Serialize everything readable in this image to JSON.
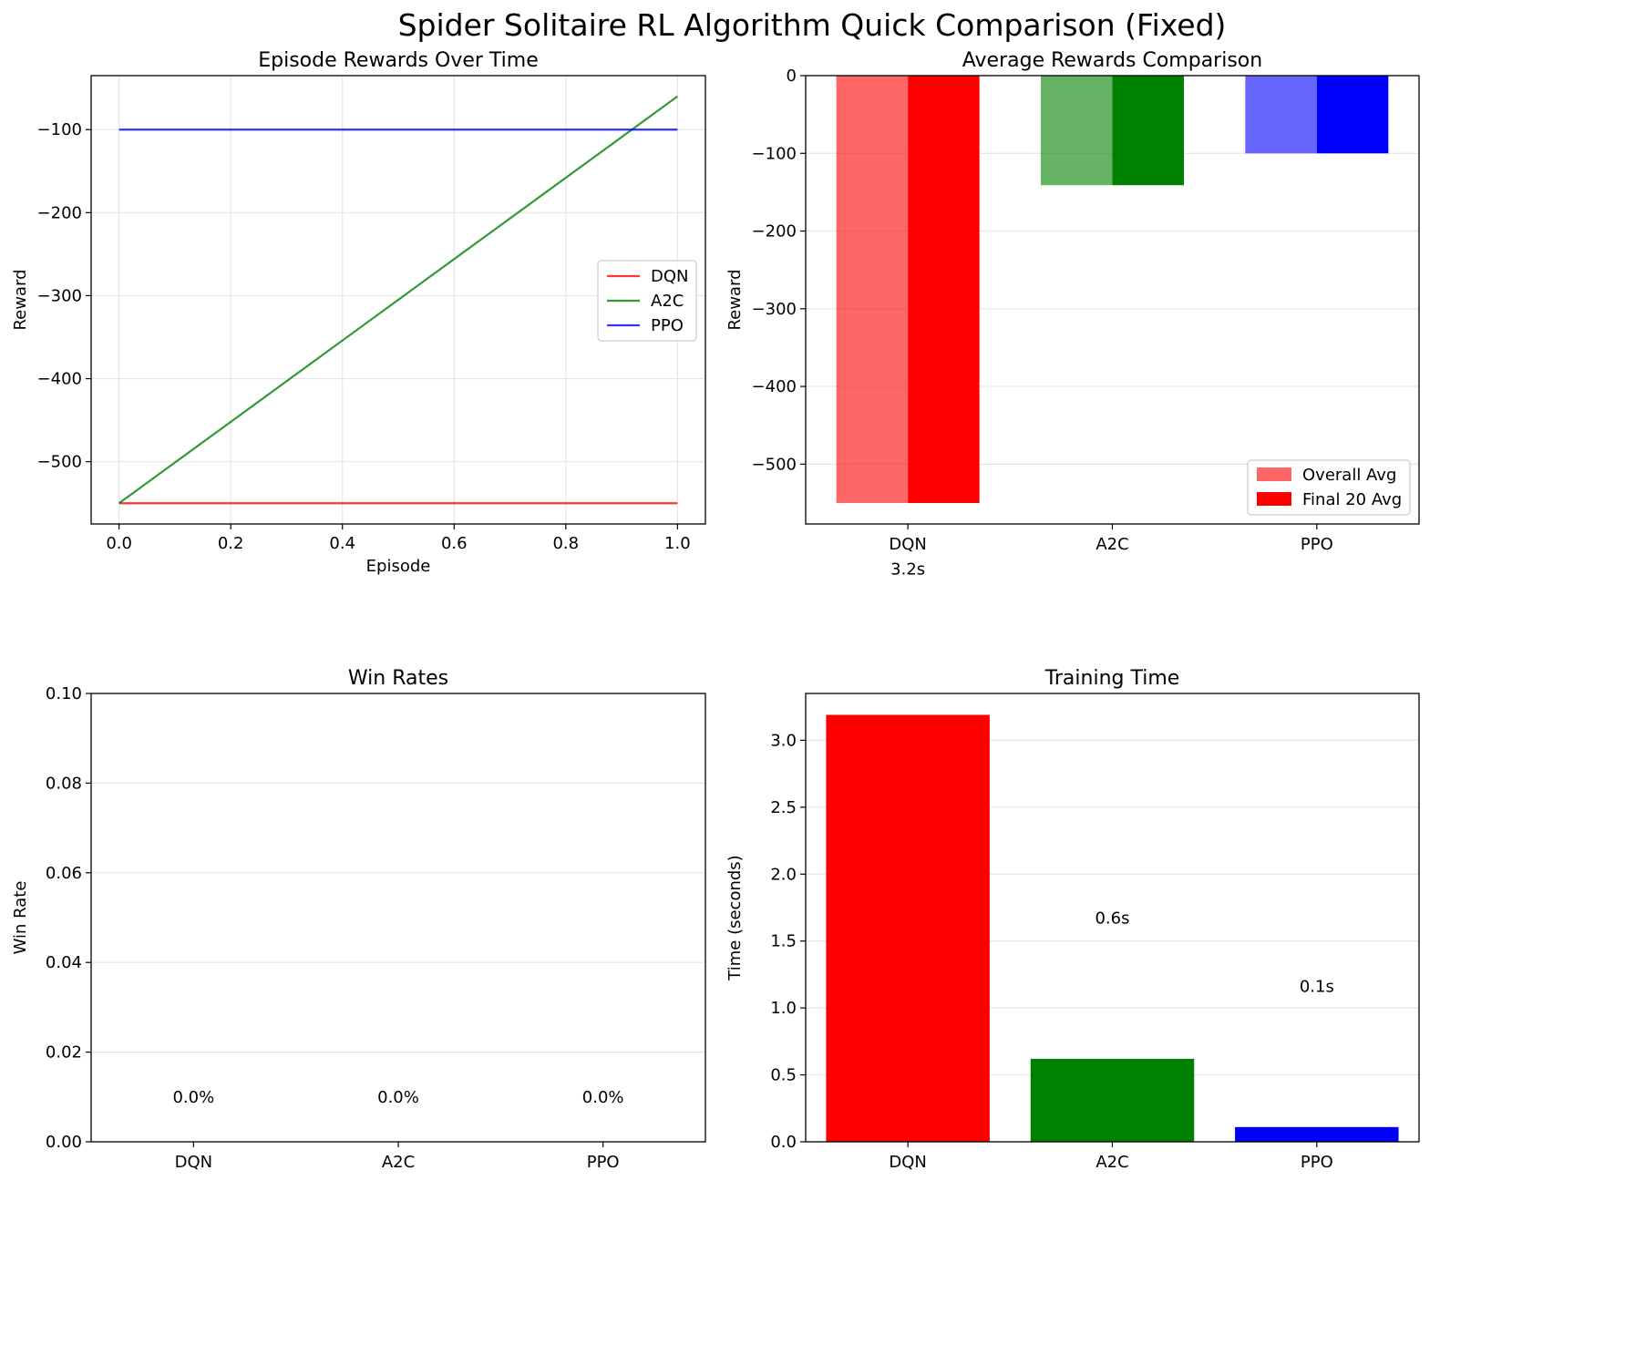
{
  "suptitle": "Spider Solitaire RL Algorithm Quick Comparison (Fixed)",
  "chart_data": [
    {
      "type": "line",
      "title": "Episode Rewards Over Time",
      "xlabel": "Episode",
      "ylabel": "Reward",
      "xlim": [
        -0.05,
        1.05
      ],
      "ylim": [
        -575,
        -35
      ],
      "xticks": [
        0.0,
        0.2,
        0.4,
        0.6,
        0.8,
        1.0
      ],
      "xtick_labels": [
        "0.0",
        "0.2",
        "0.4",
        "0.6",
        "0.8",
        "1.0"
      ],
      "yticks": [
        -100,
        -200,
        -300,
        -400,
        -500
      ],
      "ytick_labels": [
        "−100",
        "−200",
        "−300",
        "−400",
        "−500"
      ],
      "grid": true,
      "legend": "center-right",
      "series": [
        {
          "name": "DQN",
          "color": "#ff0000",
          "x": [
            0,
            1
          ],
          "y": [
            -550,
            -550
          ]
        },
        {
          "name": "A2C",
          "color": "#008000",
          "x": [
            0,
            1
          ],
          "y": [
            -550,
            -60
          ]
        },
        {
          "name": "PPO",
          "color": "#0000ff",
          "x": [
            0,
            1
          ],
          "y": [
            -100,
            -100
          ]
        }
      ]
    },
    {
      "type": "bar",
      "title": "Average Rewards Comparison",
      "xlabel": "",
      "ylabel": "Reward",
      "categories": [
        "DQN",
        "A2C",
        "PPO"
      ],
      "ylim": [
        -577,
        0
      ],
      "yticks": [
        0,
        -100,
        -200,
        -300,
        -400,
        -500
      ],
      "ytick_labels": [
        "0",
        "−100",
        "−200",
        "−300",
        "−400",
        "−500"
      ],
      "grid": true,
      "legend": "lower-right",
      "colors": [
        "#ff0000",
        "#008000",
        "#0000ff"
      ],
      "series": [
        {
          "name": "Overall Avg",
          "alpha": 0.6,
          "values": [
            -550,
            -141,
            -100
          ]
        },
        {
          "name": "Final 20 Avg",
          "alpha": 1.0,
          "values": [
            -550,
            -141,
            -100
          ]
        }
      ],
      "annotations": [
        {
          "text": "3.2s",
          "category": "DQN",
          "y": -635
        }
      ]
    },
    {
      "type": "bar",
      "title": "Win Rates",
      "xlabel": "",
      "ylabel": "Win Rate",
      "categories": [
        "DQN",
        "A2C",
        "PPO"
      ],
      "values": [
        0.0,
        0.0,
        0.0
      ],
      "ylim": [
        0,
        0.1
      ],
      "yticks": [
        0.0,
        0.02,
        0.04,
        0.06,
        0.08,
        0.1
      ],
      "ytick_labels": [
        "0.00",
        "0.02",
        "0.04",
        "0.06",
        "0.08",
        "0.10"
      ],
      "grid": true,
      "colors": [
        "#ff0000",
        "#008000",
        "#0000ff"
      ],
      "data_labels": [
        "0.0%",
        "0.0%",
        "0.0%"
      ],
      "label_y": 0.01
    },
    {
      "type": "bar",
      "title": "Training Time",
      "xlabel": "",
      "ylabel": "Time (seconds)",
      "categories": [
        "DQN",
        "A2C",
        "PPO"
      ],
      "values": [
        3.19,
        0.62,
        0.11
      ],
      "ylim": [
        0,
        3.35
      ],
      "yticks": [
        0.0,
        0.5,
        1.0,
        1.5,
        2.0,
        2.5,
        3.0
      ],
      "ytick_labels": [
        "0.0",
        "0.5",
        "1.0",
        "1.5",
        "2.0",
        "2.5",
        "3.0"
      ],
      "grid": true,
      "colors": [
        "#ff0000",
        "#008000",
        "#0000ff"
      ],
      "data_labels": [
        "",
        "0.6s",
        "0.1s"
      ],
      "label_y": [
        null,
        1.67,
        1.16
      ]
    }
  ]
}
